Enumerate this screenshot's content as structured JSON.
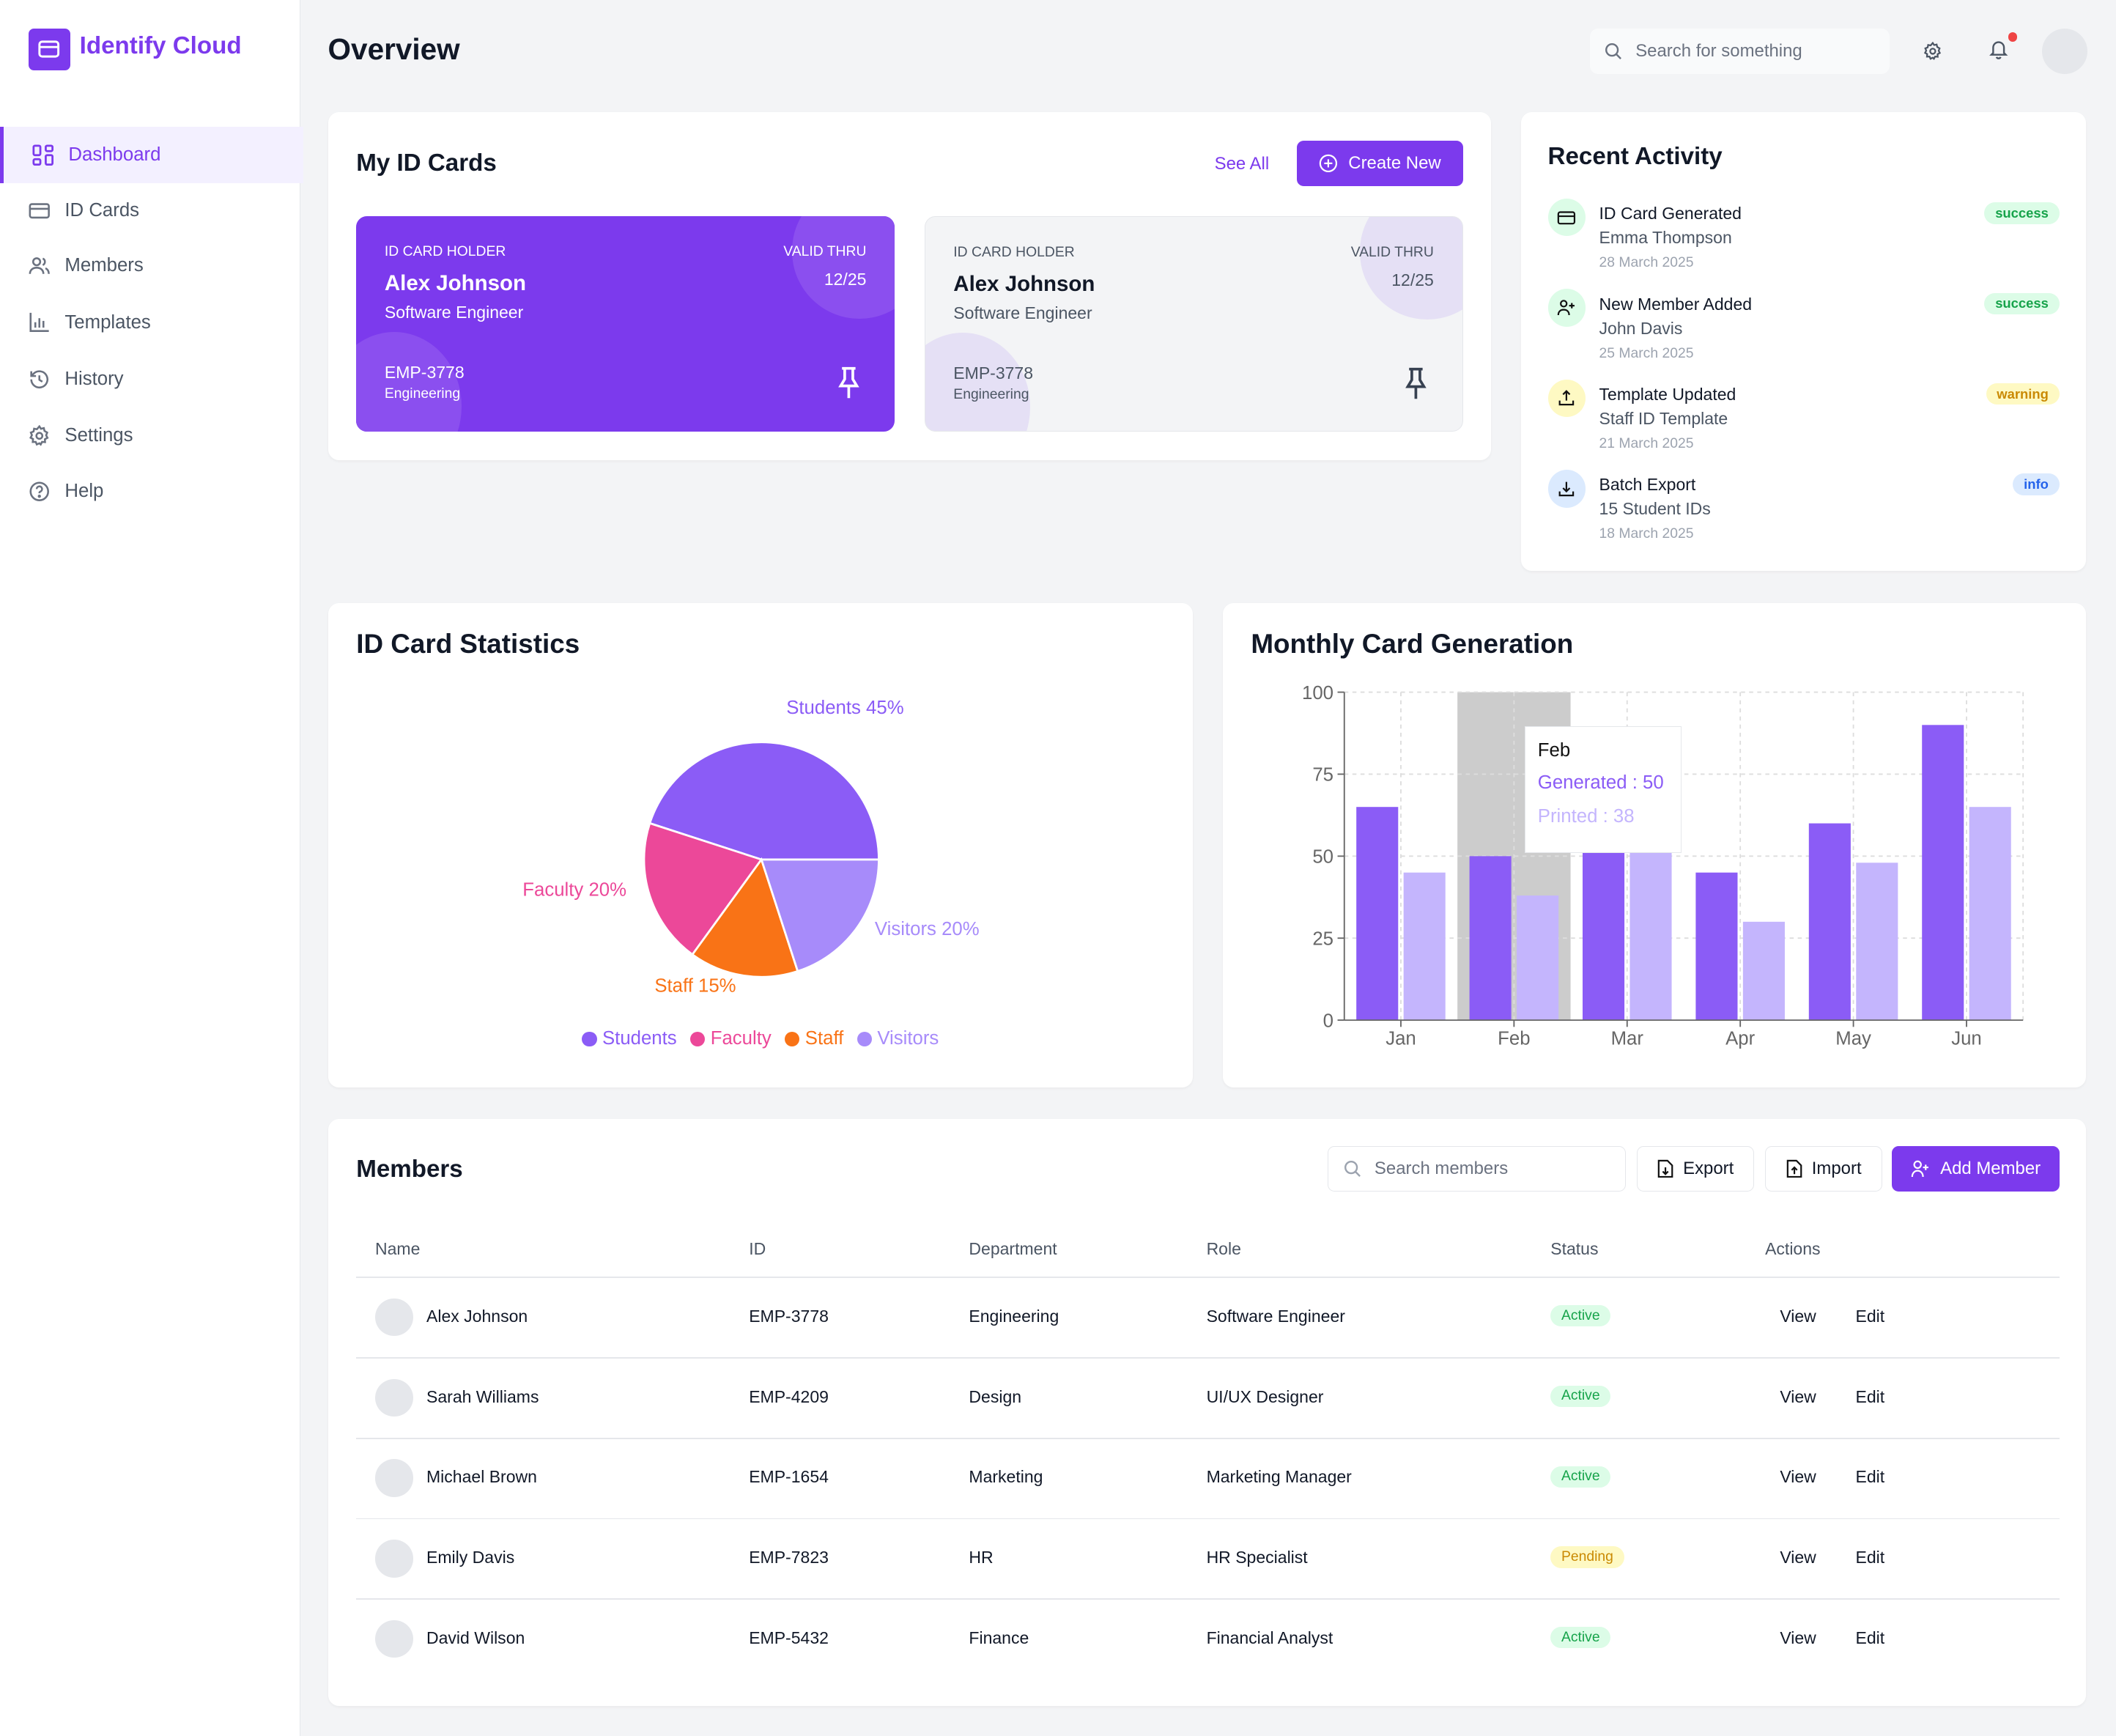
{
  "app": {
    "name": "Identify Cloud"
  },
  "sidebar": {
    "items": [
      {
        "label": "Dashboard",
        "icon": "dashboard-icon",
        "active": true
      },
      {
        "label": "ID Cards",
        "icon": "id-card-icon"
      },
      {
        "label": "Members",
        "icon": "users-icon"
      },
      {
        "label": "Templates",
        "icon": "bar-chart-icon"
      },
      {
        "label": "History",
        "icon": "history-icon"
      },
      {
        "label": "Settings",
        "icon": "gear-icon"
      },
      {
        "label": "Help",
        "icon": "help-icon"
      }
    ]
  },
  "header": {
    "title": "Overview",
    "search_placeholder": "Search for something"
  },
  "id_cards": {
    "title": "My ID Cards",
    "see_all": "See All",
    "create_new": "Create New",
    "cards": [
      {
        "holder_label": "ID CARD HOLDER",
        "name": "Alex Johnson",
        "role": "Software Engineer",
        "valid_label": "VALID THRU",
        "valid": "12/25",
        "id": "EMP-3778",
        "dept": "Engineering",
        "theme": "#7c3aed"
      },
      {
        "holder_label": "ID CARD HOLDER",
        "name": "Alex Johnson",
        "role": "Software Engineer",
        "valid_label": "VALID THRU",
        "valid": "12/25",
        "id": "EMP-3778",
        "dept": "Engineering",
        "theme": "#f3f4f6"
      }
    ]
  },
  "activity": {
    "title": "Recent Activity",
    "items": [
      {
        "title": "ID Card Generated",
        "subtitle": "Emma Thompson",
        "date": "28 March 2025",
        "badge": "success",
        "icon": "id-card-icon"
      },
      {
        "title": "New Member Added",
        "subtitle": "John Davis",
        "date": "25 March 2025",
        "badge": "success",
        "icon": "user-plus-icon"
      },
      {
        "title": "Template Updated",
        "subtitle": "Staff ID Template",
        "date": "21 March 2025",
        "badge": "warning",
        "icon": "upload-icon"
      },
      {
        "title": "Batch Export",
        "subtitle": "15 Student IDs",
        "date": "18 March 2025",
        "badge": "info",
        "icon": "download-icon"
      }
    ]
  },
  "chart_data": [
    {
      "type": "pie",
      "title": "ID Card Statistics",
      "categories": [
        "Students",
        "Faculty",
        "Staff",
        "Visitors"
      ],
      "values": [
        45,
        20,
        15,
        20
      ],
      "labels": [
        "Students 45%",
        "Faculty 20%",
        "Staff 15%",
        "Visitors 20%"
      ],
      "colors": [
        "#8b5cf6",
        "#ec4899",
        "#f97316",
        "#a78bfa"
      ],
      "legend": "bottom"
    },
    {
      "type": "bar",
      "title": "Monthly Card Generation",
      "categories": [
        "Jan",
        "Feb",
        "Mar",
        "Apr",
        "May",
        "Jun"
      ],
      "series": [
        {
          "name": "Generated",
          "values": [
            65,
            50,
            75,
            45,
            60,
            90
          ],
          "color": "#8b5cf6"
        },
        {
          "name": "Printed",
          "values": [
            45,
            38,
            55,
            30,
            48,
            65
          ],
          "color": "#c4b5fd"
        }
      ],
      "ylim": [
        0,
        100
      ],
      "yticks": [
        0,
        25,
        50,
        75,
        100
      ],
      "grid": true,
      "tooltip": {
        "category": "Feb",
        "lines": [
          "Generated : 50",
          "Printed : 38"
        ]
      }
    }
  ],
  "members": {
    "title": "Members",
    "search_placeholder": "Search members",
    "export": "Export",
    "import": "Import",
    "add": "Add Member",
    "columns": [
      "Name",
      "ID",
      "Department",
      "Role",
      "Status",
      "Actions"
    ],
    "view": "View",
    "edit": "Edit",
    "rows": [
      {
        "name": "Alex Johnson",
        "id": "EMP-3778",
        "dept": "Engineering",
        "role": "Software Engineer",
        "status": "Active"
      },
      {
        "name": "Sarah Williams",
        "id": "EMP-4209",
        "dept": "Design",
        "role": "UI/UX Designer",
        "status": "Active"
      },
      {
        "name": "Michael Brown",
        "id": "EMP-1654",
        "dept": "Marketing",
        "role": "Marketing Manager",
        "status": "Active"
      },
      {
        "name": "Emily Davis",
        "id": "EMP-7823",
        "dept": "HR",
        "role": "HR Specialist",
        "status": "Pending"
      },
      {
        "name": "David Wilson",
        "id": "EMP-5432",
        "dept": "Finance",
        "role": "Financial Analyst",
        "status": "Active"
      }
    ]
  }
}
